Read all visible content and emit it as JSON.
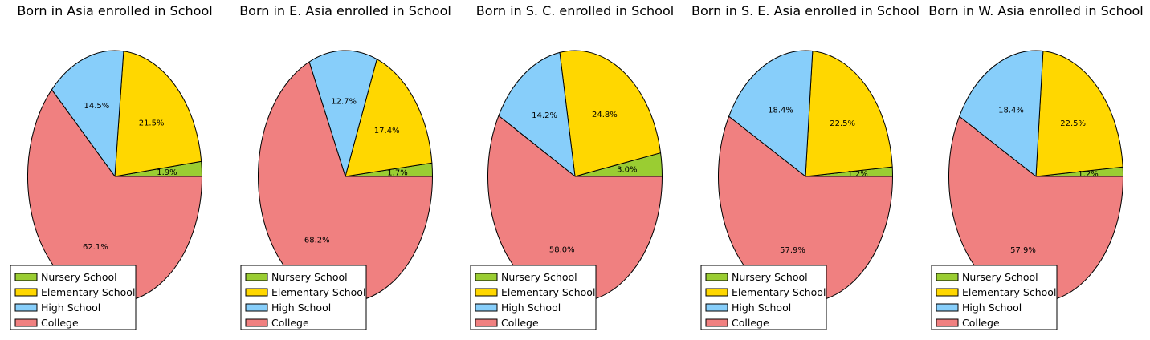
{
  "legend_labels": [
    "Nursery School",
    "Elementary School",
    "High School",
    "College"
  ],
  "colors": {
    "nursery": "#9ACD32",
    "elementary": "#FFD700",
    "high_school": "#87CEFA",
    "college": "#F08080"
  },
  "chart_data": [
    {
      "type": "pie",
      "title": "Born in Asia enrolled in School",
      "labels": [
        "Nursery School",
        "Elementary School",
        "High School",
        "College"
      ],
      "values": [
        1.9,
        21.5,
        14.5,
        62.1
      ],
      "value_labels": [
        "1.9%",
        "21.5%",
        "14.5%",
        "62.1%"
      ],
      "legend": "lower-left"
    },
    {
      "type": "pie",
      "title": "Born in E. Asia enrolled in School",
      "labels": [
        "Nursery School",
        "Elementary School",
        "High School",
        "College"
      ],
      "values": [
        1.7,
        17.4,
        12.7,
        68.2
      ],
      "value_labels": [
        "1.7%",
        "17.4%",
        "12.7%",
        "68.2%"
      ],
      "legend": "lower-left"
    },
    {
      "type": "pie",
      "title": "Born in S. C. enrolled in School",
      "labels": [
        "Nursery School",
        "Elementary School",
        "High School",
        "College"
      ],
      "values": [
        3.0,
        24.8,
        14.2,
        58.0
      ],
      "value_labels": [
        "3.0%",
        "24.8%",
        "14.2%",
        "58.0%"
      ],
      "legend": "lower-left"
    },
    {
      "type": "pie",
      "title": "Born in S. E. Asia enrolled in School",
      "labels": [
        "Nursery School",
        "Elementary School",
        "High School",
        "College"
      ],
      "values": [
        1.2,
        22.5,
        18.4,
        57.9
      ],
      "value_labels": [
        "1.2%",
        "22.5%",
        "18.4%",
        "57.9%"
      ],
      "legend": "lower-left"
    },
    {
      "type": "pie",
      "title": "Born in W. Asia enrolled in School",
      "labels": [
        "Nursery School",
        "Elementary School",
        "High School",
        "College"
      ],
      "values": [
        1.2,
        22.5,
        18.4,
        57.9
      ],
      "value_labels": [
        "1.2%",
        "22.5%",
        "18.4%",
        "57.9%"
      ],
      "legend": "lower-left"
    }
  ]
}
